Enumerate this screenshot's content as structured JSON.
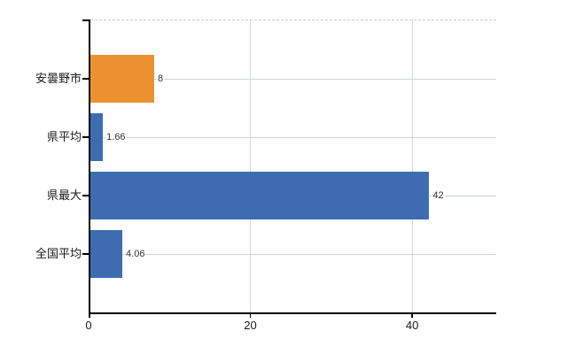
{
  "chart_data": {
    "type": "bar",
    "orientation": "horizontal",
    "title": "",
    "xlabel": "",
    "ylabel": "",
    "categories": [
      "安曇野市",
      "県平均",
      "県最大",
      "全国平均"
    ],
    "values": [
      8,
      1.66,
      42,
      4.06
    ],
    "value_labels": [
      "8",
      "1.66",
      "42",
      "4.06"
    ],
    "bar_colors": [
      "#EC9132",
      "#3D6DB0",
      "#3D6DB0",
      "#3D6DB0"
    ],
    "highlight_color": "#EC9132",
    "base_color": "#3D6DB0",
    "xticks": [
      "0",
      "20",
      "40"
    ],
    "xtick_values": [
      0,
      20,
      40
    ],
    "xlim": [
      0,
      50.4
    ],
    "grid": "on",
    "legend": "none",
    "colors": {
      "h_gridline": "#ccd4cc",
      "v_gridline": "#d9d9d9",
      "top_border_dashed": "#c9c9c9",
      "axis": "#000000",
      "label_text": "#1a1a1a",
      "value_text": "#333333",
      "background": "#ffffff"
    }
  }
}
